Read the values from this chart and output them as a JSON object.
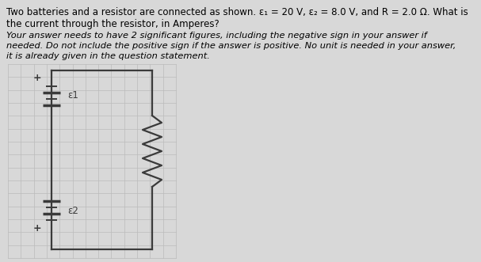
{
  "background_color": "#d8d8d8",
  "circuit_bg": "#d8d8d8",
  "text_color": "#000000",
  "title_line1": "Two batteries and a resistor are connected as shown. ε₁ = 20 V, ε₂ = 8.0 V, and R = 2.0 Ω. What is",
  "title_line2": "the current through the resistor, in Amperes?",
  "italic_line1": "Your answer needs to have 2 significant figures, including the negative sign in your answer if",
  "italic_line2": "needed. Do not include the positive sign if the answer is positive. No unit is needed in your answer,",
  "italic_line3": "it is already given in the question statement.",
  "grid_color": "#bbbbbb",
  "circuit_line_color": "#3a3a3a",
  "label_e1": "ε1",
  "label_e2": "ε2"
}
